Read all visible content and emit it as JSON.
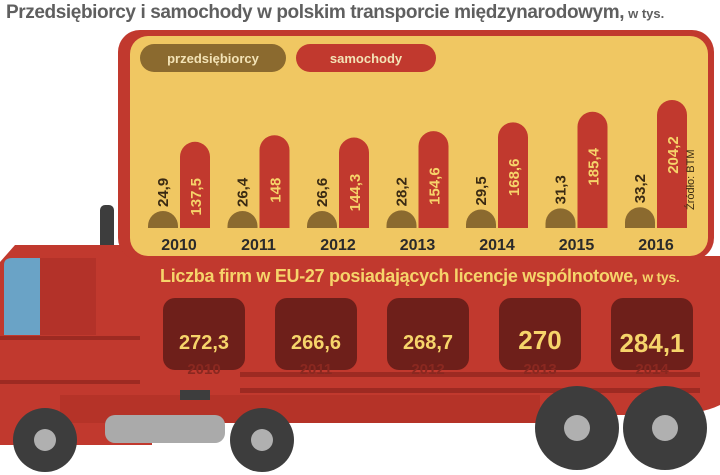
{
  "title": "Przedsiębiorcy i samochody w polskim transporcie międzynarodowym,",
  "title_unit": "w tys.",
  "source": "Źródło: BTM",
  "colors": {
    "firms": "#8b6a2f",
    "trucks": "#c1392e",
    "panel": "#f0c762",
    "truck_body": "#c1392e",
    "box_dark": "#6e1f1a",
    "value_label": "#f6d46a"
  },
  "chart_data": [
    {
      "type": "bar",
      "categories": [
        "2010",
        "2011",
        "2012",
        "2013",
        "2014",
        "2015",
        "2016"
      ],
      "series": [
        {
          "name": "przedsiębiorcy",
          "values": [
            24.9,
            26.4,
            26.6,
            28.2,
            29.5,
            31.3,
            33.2
          ]
        },
        {
          "name": "samochody",
          "values": [
            137.5,
            148,
            144.3,
            154.6,
            168.6,
            185.4,
            204.2
          ]
        }
      ],
      "value_labels": {
        "przedsiębiorcy": [
          "24,9",
          "26,4",
          "26,6",
          "28,2",
          "29,5",
          "31,3",
          "33,2"
        ],
        "samochody": [
          "137,5",
          "148",
          "144,3",
          "154,6",
          "168,6",
          "185,4",
          "204,2"
        ]
      },
      "legend": "top-left"
    },
    {
      "type": "table",
      "title": "Liczba firm w EU-27 posiadających licencje wspólnotowe,",
      "title_unit": "w tys.",
      "categories": [
        "2010",
        "2011",
        "2012",
        "2013",
        "2014"
      ],
      "values": [
        272.3,
        266.6,
        268.7,
        270,
        284.1
      ],
      "value_labels": [
        "272,3",
        "266,6",
        "268,7",
        "270",
        "284,1"
      ]
    }
  ]
}
